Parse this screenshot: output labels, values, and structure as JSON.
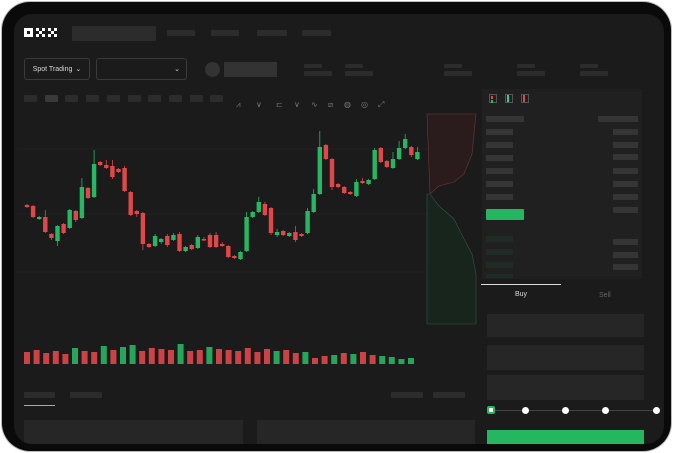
{
  "brand": {
    "logo": "OKX"
  },
  "toolbar": {
    "market_dropdown": "Spot Trading",
    "pair_dropdown": "",
    "icons": [
      "line-chart-icon",
      "indicator-icon",
      "candle-type-icon",
      "trend-icon",
      "draw-icon",
      "screenshot-icon",
      "settings-icon",
      "fullscreen-icon"
    ]
  },
  "orderbook": {
    "layout_icons": [
      "both-sides-icon",
      "bids-only-icon",
      "asks-only-icon"
    ]
  },
  "trade": {
    "tabs": [
      {
        "label": "Buy",
        "active": true
      },
      {
        "label": "Sell",
        "active": false
      }
    ],
    "slider_percent": 0,
    "slider_steps": [
      0,
      25,
      50,
      75,
      100
    ]
  },
  "colors": {
    "up": "#26b763",
    "down": "#e0474a",
    "background": "#1b1b1b",
    "accent": "#25b660"
  },
  "chart_data": {
    "type": "candlestick",
    "candles": [
      [
        67,
        65,
        68,
        64
      ],
      [
        66,
        55,
        67,
        54
      ],
      [
        53,
        55,
        56,
        52
      ],
      [
        55,
        40,
        62,
        39
      ],
      [
        38,
        34,
        39,
        32
      ],
      [
        31,
        46,
        47,
        26
      ],
      [
        48,
        39,
        49,
        38
      ],
      [
        44,
        62,
        63,
        43
      ],
      [
        61,
        52,
        62,
        50
      ],
      [
        54,
        85,
        94,
        53
      ],
      [
        84,
        74,
        85,
        73
      ],
      [
        75,
        108,
        122,
        74
      ],
      [
        110,
        107,
        111,
        106
      ],
      [
        107,
        104,
        112,
        103
      ],
      [
        106,
        95,
        112,
        93
      ],
      [
        103,
        100,
        104,
        99
      ],
      [
        104,
        81,
        106,
        80
      ],
      [
        80,
        57,
        81,
        56
      ],
      [
        61,
        58,
        62,
        55
      ],
      [
        59,
        28,
        60,
        22
      ],
      [
        28,
        25,
        29,
        24
      ],
      [
        26,
        36,
        38,
        25
      ],
      [
        30,
        33,
        34,
        28
      ],
      [
        36,
        27,
        38,
        25
      ],
      [
        32,
        37,
        39,
        31
      ],
      [
        38,
        21,
        40,
        20
      ],
      [
        21,
        25,
        26,
        20
      ],
      [
        27,
        23,
        28,
        22
      ],
      [
        24,
        35,
        37,
        23
      ],
      [
        33,
        32,
        35,
        31
      ],
      [
        37,
        25,
        39,
        24
      ],
      [
        37,
        25,
        40,
        24
      ],
      [
        28,
        26,
        30,
        25
      ],
      [
        26,
        15,
        27,
        14
      ],
      [
        16,
        14,
        17,
        13
      ],
      [
        13,
        20,
        21,
        12
      ],
      [
        21,
        55,
        60,
        20
      ],
      [
        55,
        60,
        61,
        54
      ],
      [
        60,
        70,
        75,
        59
      ],
      [
        68,
        57,
        70,
        56
      ],
      [
        64,
        39,
        65,
        37
      ],
      [
        37,
        40,
        43,
        35
      ],
      [
        41,
        37,
        42,
        36
      ],
      [
        36,
        39,
        40,
        35
      ],
      [
        40,
        32,
        46,
        30
      ],
      [
        38,
        36,
        39,
        35
      ],
      [
        39,
        61,
        64,
        38
      ],
      [
        60,
        78,
        83,
        59
      ],
      [
        78,
        125,
        141,
        77
      ],
      [
        127,
        113,
        128,
        112
      ],
      [
        113,
        85,
        114,
        82
      ],
      [
        88,
        85,
        89,
        84
      ],
      [
        85,
        79,
        86,
        78
      ],
      [
        80,
        78,
        81,
        77
      ],
      [
        76,
        90,
        93,
        75
      ],
      [
        91,
        89,
        94,
        88
      ],
      [
        88,
        92,
        93,
        87
      ],
      [
        93,
        122,
        124,
        92
      ],
      [
        124,
        110,
        125,
        109
      ],
      [
        111,
        105,
        112,
        104
      ],
      [
        104,
        113,
        120,
        103
      ],
      [
        113,
        124,
        131,
        112
      ],
      [
        124,
        133,
        138,
        123
      ],
      [
        125,
        117,
        126,
        115
      ],
      [
        113,
        120,
        125,
        112
      ]
    ],
    "candle_format": "open,close,high,low",
    "volume": [
      [
        12,
        0
      ],
      [
        14,
        0
      ],
      [
        11,
        0
      ],
      [
        13,
        0
      ],
      [
        10,
        0
      ],
      [
        16,
        1
      ],
      [
        13,
        0
      ],
      [
        12,
        0
      ],
      [
        18,
        1
      ],
      [
        14,
        0
      ],
      [
        17,
        1
      ],
      [
        19,
        1
      ],
      [
        13,
        0
      ],
      [
        16,
        0
      ],
      [
        15,
        0
      ],
      [
        14,
        0
      ],
      [
        20,
        1
      ],
      [
        13,
        0
      ],
      [
        14,
        0
      ],
      [
        17,
        1
      ],
      [
        15,
        0
      ],
      [
        14,
        0
      ],
      [
        13,
        0
      ],
      [
        16,
        0
      ],
      [
        12,
        0
      ],
      [
        15,
        0
      ],
      [
        13,
        1
      ],
      [
        14,
        0
      ],
      [
        11,
        0
      ],
      [
        12,
        1
      ],
      [
        6,
        0
      ],
      [
        8,
        0
      ],
      [
        9,
        1
      ],
      [
        11,
        0
      ],
      [
        10,
        1
      ],
      [
        12,
        0
      ],
      [
        9,
        0
      ],
      [
        8,
        1
      ],
      [
        7,
        1
      ],
      [
        5,
        1
      ],
      [
        6,
        1
      ]
    ],
    "grid": true
  }
}
